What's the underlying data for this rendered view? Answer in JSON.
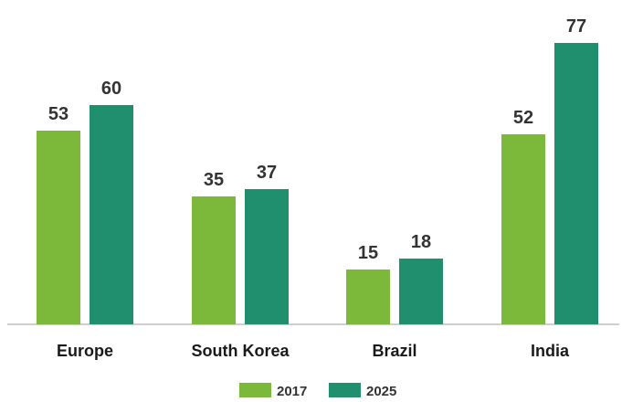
{
  "chart_data": {
    "type": "bar",
    "title": "",
    "xlabel": "",
    "ylabel": "",
    "ylim": [
      0,
      80
    ],
    "grid": false,
    "legend_position": "bottom",
    "categories": [
      "Europe",
      "South Korea",
      "Brazil",
      "India"
    ],
    "series": [
      {
        "name": "2017",
        "color": "#7cb83a",
        "values": [
          53,
          35,
          15,
          52
        ]
      },
      {
        "name": "2025",
        "color": "#1f8f6d",
        "values": [
          60,
          37,
          18,
          77
        ]
      }
    ]
  }
}
